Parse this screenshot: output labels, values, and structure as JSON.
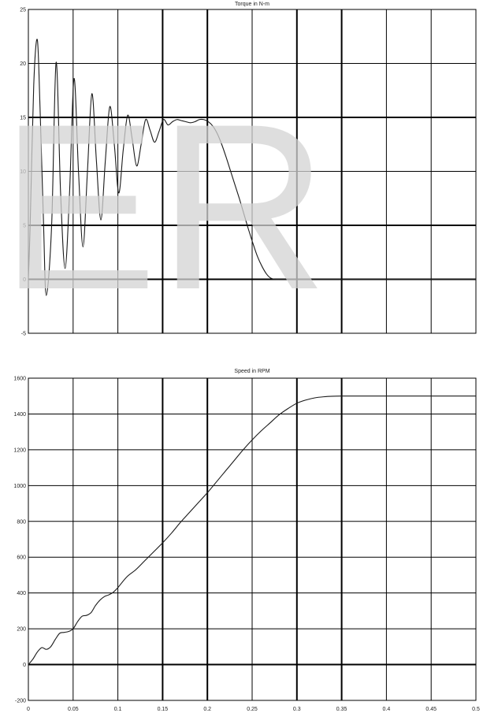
{
  "watermark": {
    "text": "ER",
    "color": "#d4d4d4"
  },
  "colors": {
    "line": "#1a1a1a",
    "grid": "#000000",
    "background": "#ffffff"
  },
  "chart_data": [
    {
      "type": "line",
      "title": "Torque in N-m",
      "xlabel": "",
      "ylabel": "",
      "xlim": [
        0,
        0.5
      ],
      "ylim": [
        -5,
        25
      ],
      "x_ticks": [
        0,
        0.05,
        0.1,
        0.15,
        0.2,
        0.25,
        0.3,
        0.35,
        0.4,
        0.45,
        0.5
      ],
      "x_tick_labels": [],
      "y_ticks": [
        -5,
        0,
        5,
        10,
        15,
        20,
        25
      ],
      "y_tick_labels": [
        "-5",
        "0",
        "5",
        "10",
        "15",
        "20",
        "25"
      ],
      "grid": true,
      "bold_gridlines_y": [
        0,
        5,
        15
      ],
      "bold_gridlines_x": [
        0.15,
        0.2,
        0.3,
        0.35
      ],
      "series": [
        {
          "x": [
            0,
            0.002,
            0.006,
            0.01,
            0.013,
            0.017,
            0.02,
            0.026,
            0.031,
            0.036,
            0.041,
            0.046,
            0.051,
            0.056,
            0.061,
            0.066,
            0.071,
            0.076,
            0.081,
            0.086,
            0.091,
            0.096,
            0.101,
            0.106,
            0.111,
            0.116,
            0.121,
            0.126,
            0.131,
            0.136,
            0.141,
            0.146,
            0.151,
            0.156,
            0.161,
            0.166,
            0.171,
            0.176,
            0.181,
            0.186,
            0.191,
            0.196,
            0.201,
            0.206,
            0.211,
            0.216,
            0.221,
            0.226,
            0.231,
            0.236,
            0.241,
            0.246,
            0.251,
            0.256,
            0.261,
            0.266,
            0.271,
            0.276,
            0.281,
            0.286,
            0.291,
            0.296,
            0.301,
            0.306,
            0.311,
            0.316,
            0.321,
            0.326,
            0.331,
            0.336,
            0.341,
            0.346,
            0.351,
            0.36,
            0.38,
            0.4,
            0.43,
            0.46,
            0.5
          ],
          "y": [
            0,
            5,
            18,
            22.2,
            16,
            5,
            -1.5,
            5,
            20.1,
            8,
            1,
            8,
            18.6,
            10,
            3,
            10,
            17.2,
            11,
            5.5,
            11,
            16,
            12.5,
            8,
            12,
            15.2,
            13,
            10.5,
            12.5,
            14.8,
            13.8,
            12.7,
            13.7,
            14.8,
            14.3,
            14.6,
            14.8,
            14.7,
            14.6,
            14.5,
            14.6,
            14.8,
            14.8,
            14.6,
            14.2,
            13.5,
            12.5,
            11.3,
            10,
            8.7,
            7.4,
            6,
            4.6,
            3.3,
            2.1,
            1.2,
            0.5,
            0.1,
            0,
            0,
            0,
            0,
            0,
            0,
            0,
            0,
            0,
            0,
            0,
            0,
            0,
            0,
            0,
            0,
            0,
            0,
            0,
            0,
            0,
            0
          ]
        }
      ]
    },
    {
      "type": "line",
      "title": "Speed in RPM",
      "xlabel": "",
      "ylabel": "",
      "xlim": [
        0,
        0.5
      ],
      "ylim": [
        -200,
        1600
      ],
      "x_ticks": [
        0,
        0.05,
        0.1,
        0.15,
        0.2,
        0.25,
        0.3,
        0.35,
        0.4,
        0.45,
        0.5
      ],
      "x_tick_labels": [
        "0",
        "0.05",
        "0.1",
        "0.15",
        "0.2",
        "0.25",
        "0.3",
        "0.35",
        "0.4",
        "0.45",
        "0.5"
      ],
      "y_ticks": [
        -200,
        0,
        200,
        400,
        600,
        800,
        1000,
        1200,
        1400,
        1600
      ],
      "y_tick_labels": [
        "-200",
        "0",
        "200",
        "400",
        "600",
        "800",
        "1000",
        "1200",
        "1400",
        "1600"
      ],
      "grid": true,
      "bold_gridlines_y": [
        0
      ],
      "bold_gridlines_x": [
        0.15,
        0.2,
        0.3,
        0.35
      ],
      "series": [
        {
          "x": [
            0,
            0.005,
            0.01,
            0.015,
            0.02,
            0.025,
            0.03,
            0.035,
            0.04,
            0.045,
            0.05,
            0.055,
            0.06,
            0.065,
            0.07,
            0.075,
            0.08,
            0.085,
            0.09,
            0.095,
            0.1,
            0.11,
            0.12,
            0.13,
            0.14,
            0.15,
            0.16,
            0.17,
            0.18,
            0.19,
            0.2,
            0.21,
            0.22,
            0.23,
            0.24,
            0.25,
            0.26,
            0.27,
            0.28,
            0.29,
            0.3,
            0.31,
            0.32,
            0.33,
            0.34,
            0.35,
            0.36,
            0.38,
            0.4,
            0.43,
            0.46,
            0.5
          ],
          "y": [
            0,
            30,
            70,
            95,
            85,
            100,
            140,
            175,
            180,
            185,
            200,
            240,
            270,
            275,
            290,
            330,
            360,
            380,
            390,
            405,
            430,
            490,
            530,
            580,
            630,
            680,
            735,
            795,
            850,
            905,
            960,
            1020,
            1080,
            1140,
            1200,
            1255,
            1305,
            1350,
            1395,
            1430,
            1460,
            1478,
            1490,
            1496,
            1499,
            1500,
            1500,
            1500,
            1500,
            1500,
            1500,
            1500
          ]
        }
      ]
    }
  ]
}
